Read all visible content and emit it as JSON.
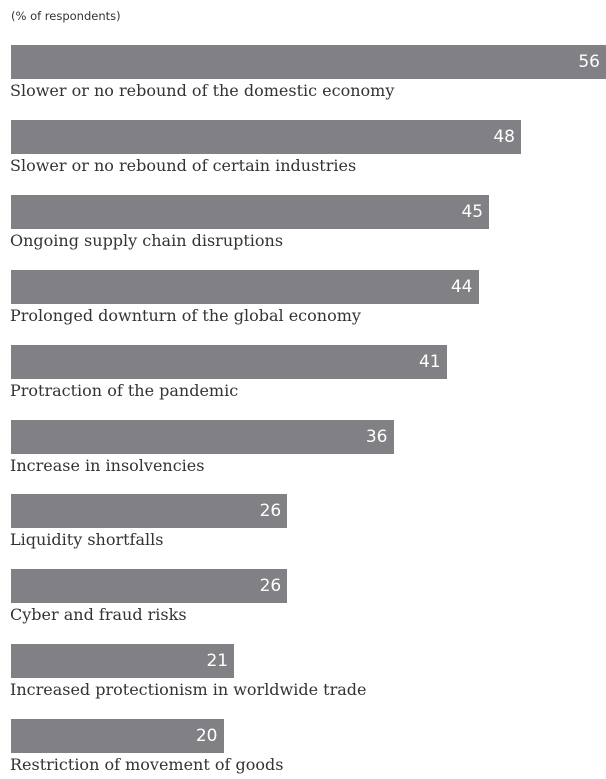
{
  "chart_data": {
    "type": "bar",
    "orientation": "horizontal",
    "subtitle": "(% of respondents)",
    "categories": [
      "Slower or no rebound of the domestic economy",
      "Slower or no rebound of certain industries",
      "Ongoing supply chain disruptions",
      "Prolonged downturn of the global economy",
      "Protraction of the pandemic",
      "Increase in insolvencies",
      "Liquidity shortfalls",
      "Cyber and fraud risks",
      "Increased protectionism in worldwide trade",
      "Restriction of movement of goods"
    ],
    "values": [
      56,
      48,
      45,
      44,
      41,
      36,
      26,
      26,
      21,
      20
    ],
    "xlim": [
      0,
      56
    ],
    "bar_color": "#808085",
    "value_label_color": "#ffffff",
    "grid": false,
    "legend": "none"
  }
}
